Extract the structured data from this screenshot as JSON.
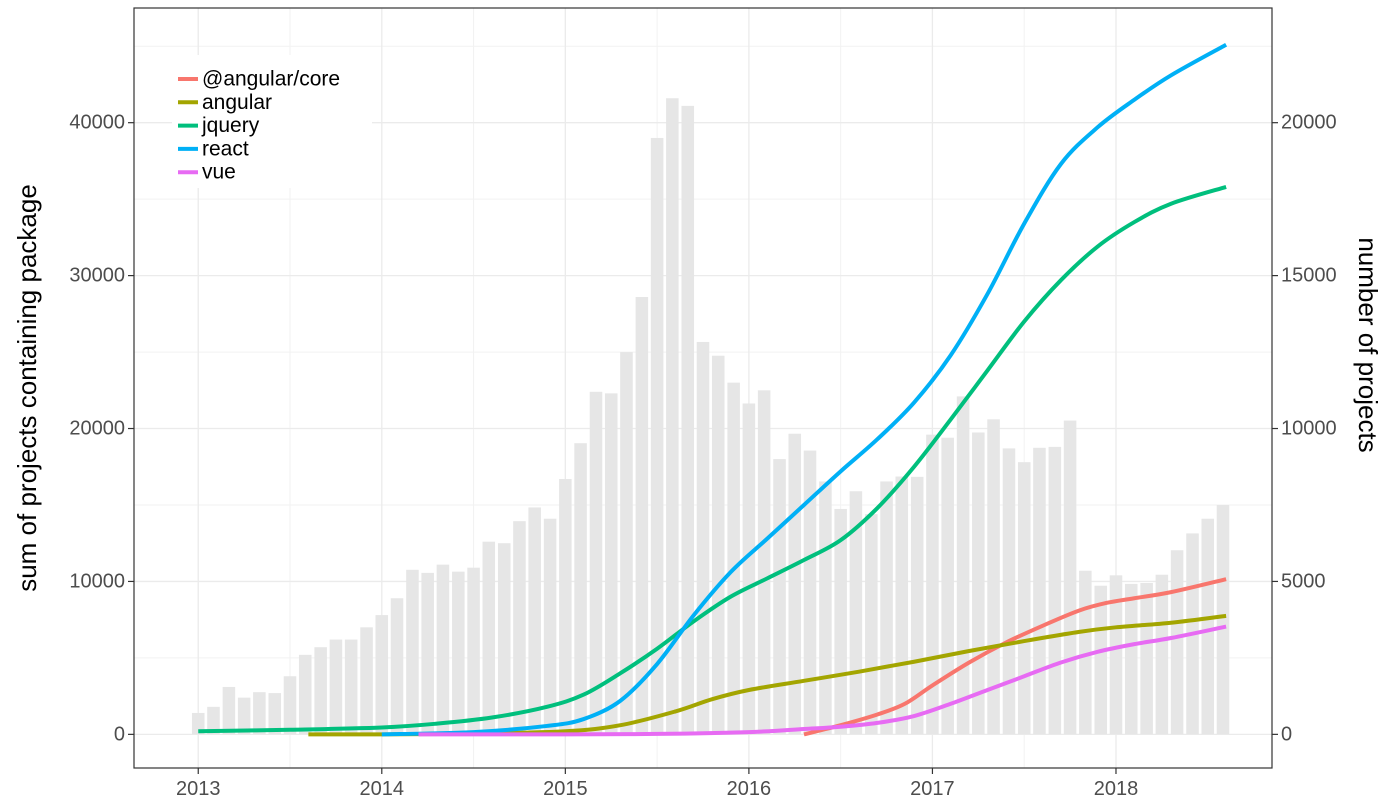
{
  "chart_data": {
    "type": "bar+line",
    "title": "",
    "ylabel": "sum of projects containing package",
    "y2label": "number of projects",
    "xlim": [
      2012.65,
      2018.85
    ],
    "ylim": [
      -2200,
      47500
    ],
    "y2lim": [
      -1100,
      23750
    ],
    "x_ticks": [
      2013,
      2014,
      2015,
      2016,
      2017,
      2018
    ],
    "y_ticks": [
      0,
      10000,
      20000,
      30000,
      40000
    ],
    "y2_ticks": [
      0,
      5000,
      10000,
      15000,
      20000
    ],
    "grid": true,
    "legend_position": "top-left",
    "colors": {
      "@angular/core": "#F8766D",
      "angular": "#A3A500",
      "jquery": "#00BF7D",
      "react": "#00B0F6",
      "vue": "#E76BF3",
      "bars": "#e6e6e6"
    },
    "bars": {
      "name": "number of projects",
      "axis": "right",
      "x": [
        2013.0,
        2013.083,
        2013.167,
        2013.25,
        2013.333,
        2013.417,
        2013.5,
        2013.583,
        2013.667,
        2013.75,
        2013.833,
        2013.917,
        2014.0,
        2014.083,
        2014.167,
        2014.25,
        2014.333,
        2014.417,
        2014.5,
        2014.583,
        2014.667,
        2014.75,
        2014.833,
        2014.917,
        2015.0,
        2015.083,
        2015.167,
        2015.25,
        2015.333,
        2015.417,
        2015.5,
        2015.583,
        2015.667,
        2015.75,
        2015.833,
        2015.917,
        2016.0,
        2016.083,
        2016.167,
        2016.25,
        2016.333,
        2016.417,
        2016.5,
        2016.583,
        2016.667,
        2016.75,
        2016.833,
        2016.917,
        2017.0,
        2017.083,
        2017.167,
        2017.25,
        2017.333,
        2017.417,
        2017.5,
        2017.583,
        2017.667,
        2017.75,
        2017.833,
        2017.917,
        2018.0,
        2018.083,
        2018.167,
        2018.25,
        2018.333,
        2018.417,
        2018.5,
        2018.583
      ],
      "values": [
        700,
        900,
        1550,
        1200,
        1380,
        1350,
        1900,
        2600,
        2850,
        3100,
        3100,
        3500,
        3900,
        4450,
        5380,
        5280,
        5550,
        5320,
        5450,
        6300,
        6250,
        6970,
        7420,
        7050,
        8350,
        9520,
        11200,
        11150,
        12500,
        14300,
        19500,
        20800,
        20550,
        12830,
        12380,
        11500,
        10820,
        11250,
        9000,
        9830,
        9280,
        8270,
        7370,
        7950,
        7200,
        8270,
        8430,
        8420,
        9800,
        9700,
        11050,
        9870,
        10300,
        9350,
        8900,
        9370,
        9400,
        10260,
        5350,
        4860,
        5200,
        4920,
        4950,
        5220,
        6020,
        6570,
        7050,
        7500
      ]
    },
    "series": [
      {
        "name": "@angular/core",
        "axis": "left",
        "x": [
          2016.3,
          2016.5,
          2016.7,
          2016.85,
          2017.0,
          2017.2,
          2017.4,
          2017.6,
          2017.8,
          2017.95,
          2018.1,
          2018.3,
          2018.6
        ],
        "values": [
          0,
          600,
          1300,
          2000,
          3200,
          4700,
          6000,
          7100,
          8100,
          8600,
          8900,
          9300,
          10150
        ]
      },
      {
        "name": "angular",
        "axis": "left",
        "x": [
          2013.6,
          2014.0,
          2014.5,
          2015.0,
          2015.3,
          2015.6,
          2015.8,
          2016.0,
          2016.3,
          2016.6,
          2016.9,
          2017.2,
          2017.5,
          2017.8,
          2018.0,
          2018.3,
          2018.6
        ],
        "values": [
          0,
          0,
          50,
          200,
          600,
          1500,
          2300,
          2900,
          3500,
          4100,
          4750,
          5450,
          6100,
          6700,
          7000,
          7300,
          7750
        ]
      },
      {
        "name": "jquery",
        "axis": "left",
        "x": [
          2013.0,
          2013.5,
          2014.0,
          2014.3,
          2014.6,
          2014.9,
          2015.1,
          2015.3,
          2015.5,
          2015.7,
          2015.9,
          2016.1,
          2016.3,
          2016.5,
          2016.7,
          2016.9,
          2017.1,
          2017.3,
          2017.5,
          2017.7,
          2017.9,
          2018.1,
          2018.3,
          2018.6
        ],
        "values": [
          200,
          300,
          450,
          700,
          1100,
          1800,
          2600,
          4000,
          5600,
          7400,
          9000,
          10200,
          11400,
          12700,
          14800,
          17500,
          20600,
          23800,
          27000,
          29700,
          31900,
          33500,
          34700,
          35800
        ]
      },
      {
        "name": "react",
        "axis": "left",
        "x": [
          2014.0,
          2014.5,
          2014.9,
          2015.1,
          2015.3,
          2015.5,
          2015.7,
          2015.9,
          2016.1,
          2016.3,
          2016.5,
          2016.7,
          2016.9,
          2017.1,
          2017.3,
          2017.5,
          2017.7,
          2017.9,
          2018.1,
          2018.3,
          2018.6
        ],
        "values": [
          0,
          150,
          550,
          1000,
          2200,
          4600,
          7800,
          10600,
          12800,
          15000,
          17200,
          19300,
          21700,
          24800,
          28800,
          33400,
          37300,
          39700,
          41500,
          43100,
          45100
        ]
      },
      {
        "name": "vue",
        "axis": "left",
        "x": [
          2014.2,
          2015.0,
          2015.5,
          2016.0,
          2016.3,
          2016.5,
          2016.7,
          2016.9,
          2017.1,
          2017.3,
          2017.5,
          2017.7,
          2017.9,
          2018.1,
          2018.3,
          2018.6
        ],
        "values": [
          0,
          0,
          30,
          150,
          350,
          500,
          750,
          1200,
          2000,
          2900,
          3800,
          4700,
          5400,
          5900,
          6300,
          7050
        ]
      }
    ]
  }
}
